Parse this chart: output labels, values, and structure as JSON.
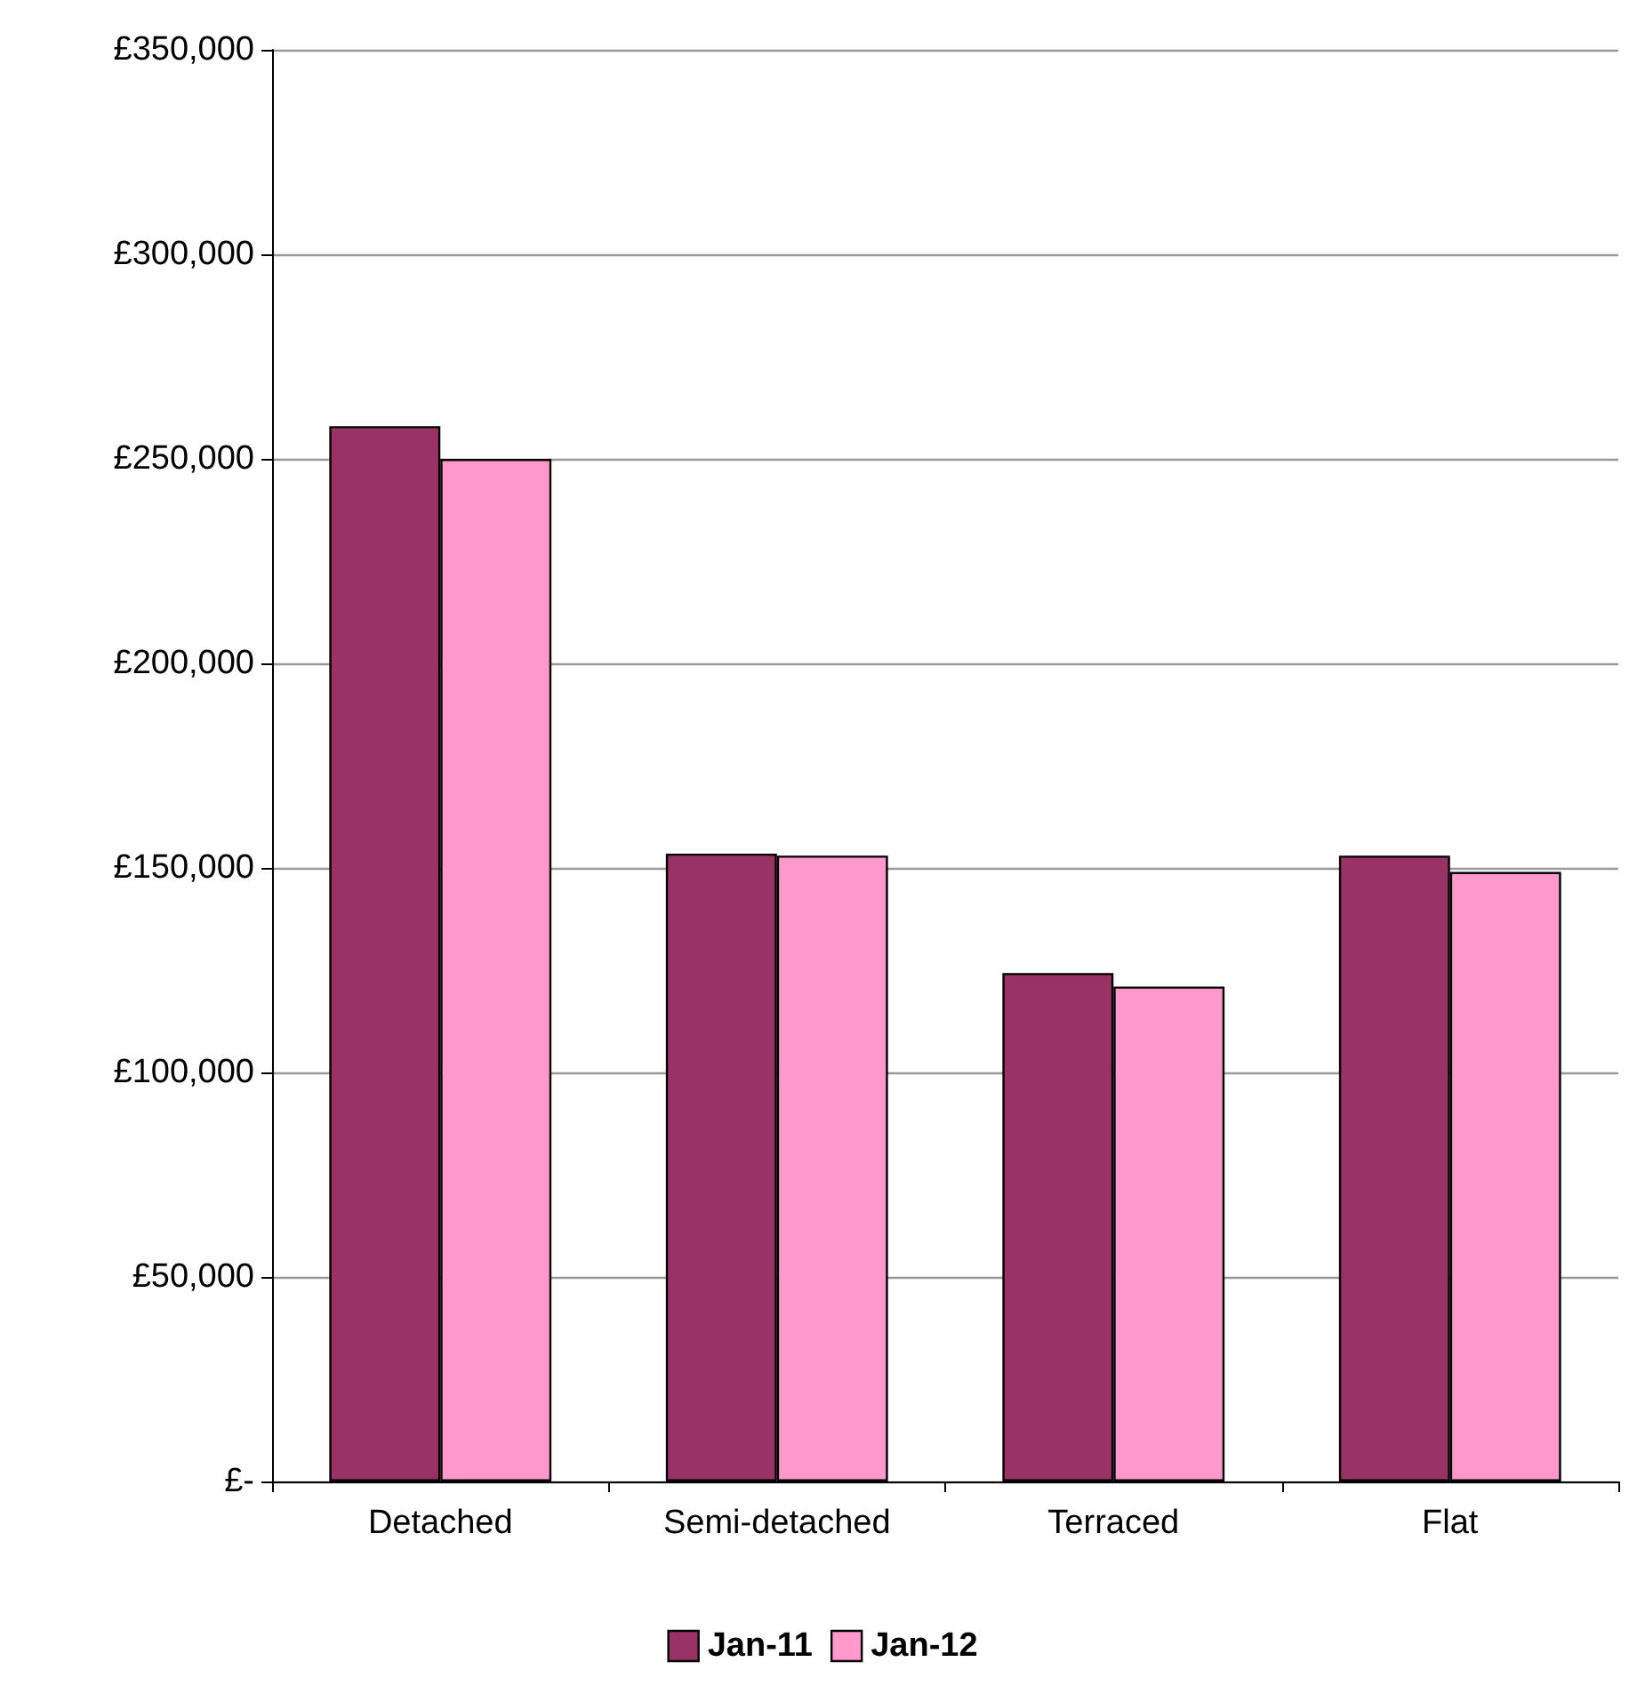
{
  "chart_data": {
    "type": "bar",
    "categories": [
      "Detached",
      "Semi-detached",
      "Terraced",
      "Flat"
    ],
    "series": [
      {
        "name": "Jan-11",
        "color": "#993366",
        "values": [
          258000,
          153500,
          124300,
          153000
        ]
      },
      {
        "name": "Jan-12",
        "color": "#ff99cc",
        "values": [
          250000,
          153000,
          121000,
          149000
        ]
      }
    ],
    "ylim": [
      0,
      350000
    ],
    "yticks": [
      {
        "value": 0,
        "label": "£-"
      },
      {
        "value": 50000,
        "label": "£50,000"
      },
      {
        "value": 100000,
        "label": "£100,000"
      },
      {
        "value": 150000,
        "label": "£150,000"
      },
      {
        "value": 200000,
        "label": "£200,000"
      },
      {
        "value": 250000,
        "label": "£250,000"
      },
      {
        "value": 300000,
        "label": "£300,000"
      },
      {
        "value": 350000,
        "label": "£350,000"
      }
    ],
    "grid": "y",
    "legend": "bottom"
  }
}
